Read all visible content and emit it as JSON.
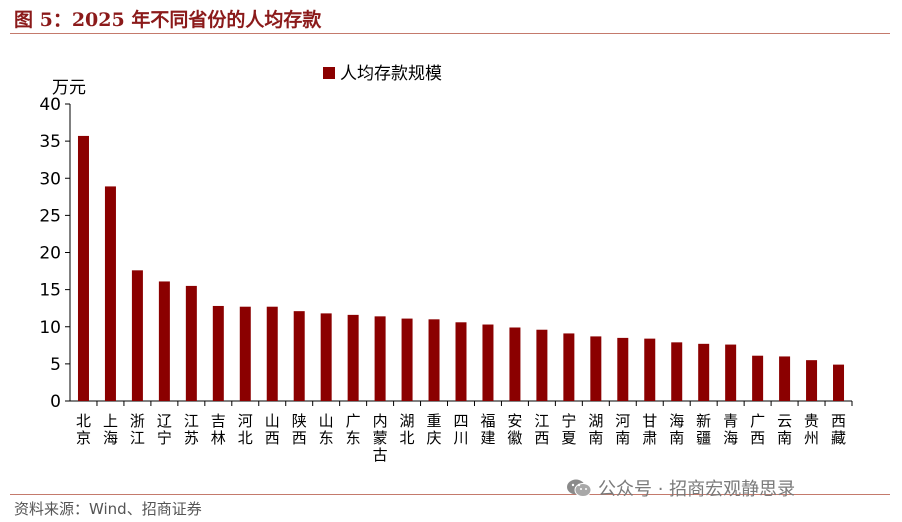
{
  "title": "图 5：2025 年不同省份的人均存款",
  "source": "资料来源：Wind、招商证券",
  "watermark": "公众号 · 招商宏观静思录",
  "colors": {
    "bar": "#8b0000",
    "title": "#8b1a1a",
    "rule": "#c47a6c"
  },
  "chart_data": {
    "type": "bar",
    "ylabel": "万元",
    "ylim": [
      0,
      40
    ],
    "yticks": [
      0,
      5,
      10,
      15,
      20,
      25,
      30,
      35,
      40
    ],
    "legend": {
      "label": "人均存款规模",
      "position": "top-center"
    },
    "categories": [
      "北京",
      "上海",
      "浙江",
      "辽宁",
      "江苏",
      "吉林",
      "河北",
      "山西",
      "陕西",
      "山东",
      "广东",
      "内蒙古",
      "湖北",
      "重庆",
      "四川",
      "福建",
      "安徽",
      "江西",
      "宁夏",
      "湖南",
      "河南",
      "甘肃",
      "海南",
      "新疆",
      "青海",
      "广西",
      "云南",
      "贵州",
      "西藏"
    ],
    "values": [
      35.7,
      28.9,
      17.6,
      16.1,
      15.5,
      12.8,
      12.7,
      12.7,
      12.1,
      11.8,
      11.6,
      11.4,
      11.1,
      11.0,
      10.6,
      10.3,
      9.9,
      9.6,
      9.1,
      8.7,
      8.5,
      8.4,
      7.9,
      7.7,
      7.6,
      6.1,
      6.0,
      5.5,
      4.9
    ]
  }
}
